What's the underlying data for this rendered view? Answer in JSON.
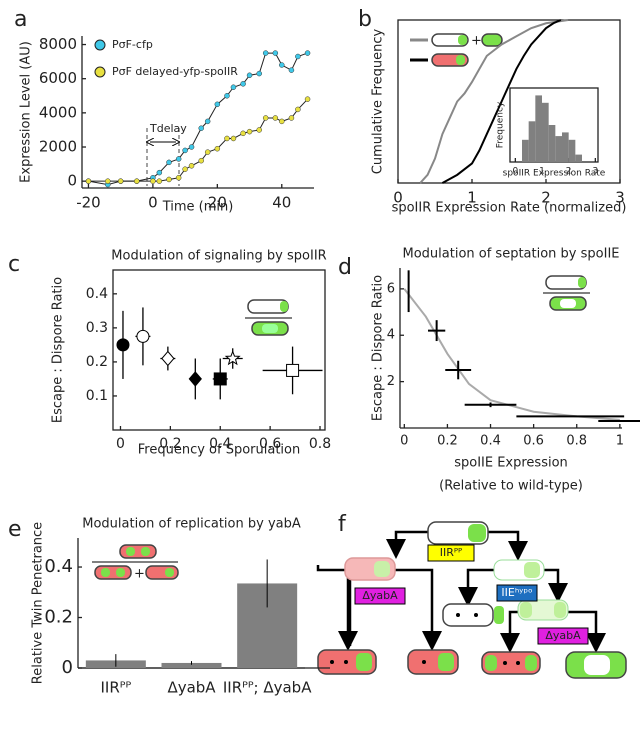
{
  "chart_data": [
    {
      "panel": "a",
      "type": "line",
      "xlabel": "Time (min)",
      "ylabel": "Expression Level (AU)",
      "xlim": [
        -22,
        50
      ],
      "ylim": [
        -400,
        8500
      ],
      "xticks": [
        -20,
        0,
        20,
        40
      ],
      "yticks": [
        0,
        2000,
        4000,
        6000,
        8000
      ],
      "annotation": "Tdelay",
      "x": [
        -20,
        -14,
        -10,
        -5,
        0,
        2,
        5,
        8,
        10,
        12,
        15,
        17,
        20,
        23,
        25,
        28,
        30,
        33,
        35,
        38,
        40,
        43,
        45,
        48
      ],
      "series": [
        {
          "name": "PσF-cfp",
          "color": "#3fc8e8",
          "values": [
            0,
            -200,
            0,
            0,
            200,
            500,
            1100,
            1300,
            1800,
            2000,
            3100,
            3500,
            4500,
            5000,
            5500,
            5700,
            6200,
            6300,
            7500,
            7500,
            6800,
            6500,
            7300,
            7500
          ]
        },
        {
          "name": "PσF delayed-yfp-spoIIR",
          "color": "#e8e040",
          "values": [
            0,
            0,
            0,
            0,
            0,
            0,
            100,
            200,
            700,
            900,
            1200,
            1700,
            1900,
            2500,
            2500,
            2800,
            2900,
            3000,
            3700,
            3700,
            3500,
            3700,
            4200,
            4800
          ]
        }
      ]
    },
    {
      "panel": "b",
      "type": "line",
      "xlabel": "spoIIR Expression Rate (normalized)",
      "ylabel": "Cumulative Frequency",
      "xlim": [
        0,
        3
      ],
      "ylim": [
        0,
        1
      ],
      "xticks": [
        0,
        1,
        2,
        3
      ],
      "series": [
        {
          "color": "#888888",
          "x": [
            0.3,
            0.4,
            0.5,
            0.6,
            0.7,
            0.8,
            0.9,
            1.0,
            1.1,
            1.2,
            1.4,
            1.6,
            1.8,
            2.0,
            2.3
          ],
          "values": [
            0,
            0.05,
            0.15,
            0.3,
            0.4,
            0.5,
            0.55,
            0.62,
            0.7,
            0.78,
            0.85,
            0.9,
            0.95,
            0.98,
            1
          ]
        },
        {
          "color": "#000000",
          "x": [
            0.6,
            0.8,
            1.0,
            1.1,
            1.2,
            1.3,
            1.4,
            1.5,
            1.6,
            1.7,
            1.8,
            1.9,
            2.0,
            2.1,
            2.2
          ],
          "values": [
            0,
            0.05,
            0.12,
            0.2,
            0.3,
            0.4,
            0.5,
            0.6,
            0.7,
            0.78,
            0.85,
            0.9,
            0.95,
            0.98,
            1
          ]
        }
      ]
    },
    {
      "type": "histogram",
      "xlabel": "spoIIR Expression Rate",
      "ylabel": "Frequency",
      "color": "#808080",
      "xlim": [
        -0.2,
        3.1
      ],
      "ylim": [
        0,
        1
      ],
      "xticks": [
        0,
        1,
        2,
        3
      ],
      "bins": [
        0.25,
        0.5,
        0.75,
        1,
        1.25,
        1.5,
        1.75,
        2,
        2.25,
        2.5
      ],
      "values": [
        0.3,
        0.55,
        0.9,
        0.8,
        0.5,
        0.35,
        0.4,
        0.3,
        0.1
      ]
    },
    {
      "panel": "c",
      "type": "scatter",
      "title": "Modulation of signaling by spoIIR",
      "xlabel": "Frequency of Sporulation",
      "ylabel": "Escape : Dispore Ratio",
      "xlim": [
        -0.03,
        0.82
      ],
      "ylim": [
        0,
        0.47
      ],
      "xticks": [
        0,
        0.2,
        0.4,
        0.6,
        0.8
      ],
      "yticks": [
        0.1,
        0.2,
        0.3,
        0.4
      ],
      "x": [
        0.01,
        0.09,
        0.19,
        0.3,
        0.4,
        0.45,
        0.69
      ],
      "values": [
        0.25,
        0.275,
        0.21,
        0.15,
        0.15,
        0.21,
        0.175
      ],
      "xerr": [
        0,
        0.03,
        0.03,
        0,
        0.03,
        0.04,
        0.12
      ],
      "yerr": [
        0.1,
        0.085,
        0.035,
        0.06,
        0.06,
        0.03,
        0.07
      ],
      "markers": [
        "circle",
        "circle",
        "diamond",
        "diamond",
        "square",
        "star",
        "square"
      ],
      "fills": [
        "#000000",
        "#ffffff",
        "#ffffff",
        "#000000",
        "#000000",
        "#ffffff",
        "#ffffff"
      ]
    },
    {
      "panel": "d",
      "type": "scatter",
      "title": "Modulation of septation by spoIIE",
      "xlabel": "spoIIE Expression",
      "xlabel_note": "(Relative to wild-type)",
      "ylabel": "Escape : Dispore Ratio",
      "xlim": [
        -0.02,
        1.01
      ],
      "ylim": [
        0,
        6.9
      ],
      "xticks": [
        0,
        0.2,
        0.4,
        0.6,
        0.8,
        1
      ],
      "yticks": [
        2,
        4,
        6
      ],
      "x": [
        0.02,
        0.15,
        0.25,
        0.4,
        0.77,
        1
      ],
      "values": [
        5.9,
        4.2,
        2.5,
        1.0,
        0.5,
        0.3
      ],
      "xerr": [
        0,
        0.04,
        0.06,
        0.12,
        0.25,
        0.1
      ],
      "yerr": [
        0.9,
        0.45,
        0.4,
        0.1,
        0,
        0
      ],
      "curve": {
        "color": "#aaaaaa",
        "x": [
          0,
          0.1,
          0.2,
          0.3,
          0.4,
          0.6,
          0.8,
          1
        ],
        "values": [
          6,
          4.8,
          3.2,
          1.9,
          1.2,
          0.7,
          0.5,
          0.35
        ]
      }
    },
    {
      "panel": "e",
      "type": "bar",
      "title": "Modulation of replication by yabA",
      "ylabel": "Relative Twin Penetrance",
      "color": "#808080",
      "ylim": [
        0,
        0.515
      ],
      "yticks": [
        0,
        0.2,
        0.4
      ],
      "categories": [
        "IIRᴾᴾ",
        "ΔyabA",
        "IIRᴾᴾ; ΔyabA"
      ],
      "values": [
        0.03,
        0.02,
        0.335
      ],
      "errors": [
        0.025,
        0.007,
        0.095
      ]
    }
  ],
  "diagram": {
    "panel": "f",
    "labels": [
      "IIRᴾᴾ",
      "ΔyabA",
      "IIEʰʸᵖᵒ",
      "ΔyabA"
    ]
  }
}
